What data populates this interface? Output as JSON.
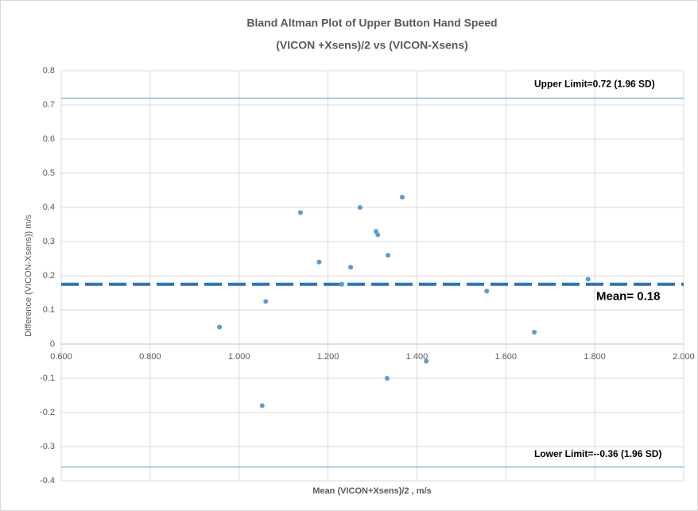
{
  "chart_data": {
    "type": "scatter",
    "title": "Bland Altman  Plot of Upper Button Hand Speed",
    "subtitle": "(VICON +Xsens)/2 vs (VICON-Xsens)",
    "x_label": "Mean (VICON+Xsens)/2 , m/s",
    "y_label": "Difference  (VICON-Xsens)) m/s",
    "color": "#5b9bd5",
    "x": [
      0.956,
      1.06,
      1.052,
      1.138,
      1.18,
      1.231,
      1.251,
      1.272,
      1.308,
      1.312,
      1.335,
      1.333,
      1.367,
      1.421,
      1.557,
      1.664,
      1.785
    ],
    "values": [
      0.05,
      0.125,
      -0.18,
      0.385,
      0.24,
      0.175,
      0.225,
      0.4,
      0.33,
      0.32,
      0.26,
      -0.1,
      0.43,
      -0.05,
      0.155,
      0.035,
      0.19
    ],
    "xlim": [
      0.6,
      2.0
    ],
    "ylim": [
      -0.4,
      0.8
    ],
    "xticks": [
      {
        "value": 0.6,
        "label": "0.600"
      },
      {
        "value": 0.8,
        "label": "0.800"
      },
      {
        "value": 1.0,
        "label": "1.000"
      },
      {
        "value": 1.2,
        "label": "1.200"
      },
      {
        "value": 1.4,
        "label": "1.400"
      },
      {
        "value": 1.6,
        "label": "1.600"
      },
      {
        "value": 1.8,
        "label": "1.800"
      },
      {
        "value": 2.0,
        "label": "2.000"
      }
    ],
    "yticks": [
      -0.4,
      -0.3,
      -0.2,
      -0.1,
      0,
      0.1,
      0.2,
      0.3,
      0.4,
      0.5,
      0.6,
      0.7,
      0.8
    ],
    "grid": true,
    "reference_lines": [
      {
        "value": 0.72,
        "label": "Upper Limit=0.72 (1.96 SD)",
        "color": "#5b9bd5",
        "style": "solid"
      },
      {
        "value": 0.175,
        "label": "Mean= 0.18",
        "color": "#2e75b6",
        "style": "dashed"
      },
      {
        "value": -0.36,
        "label": "Lower Limit=--0.36 (1.96 SD)",
        "color": "#5b9bd5",
        "style": "solid"
      }
    ]
  }
}
